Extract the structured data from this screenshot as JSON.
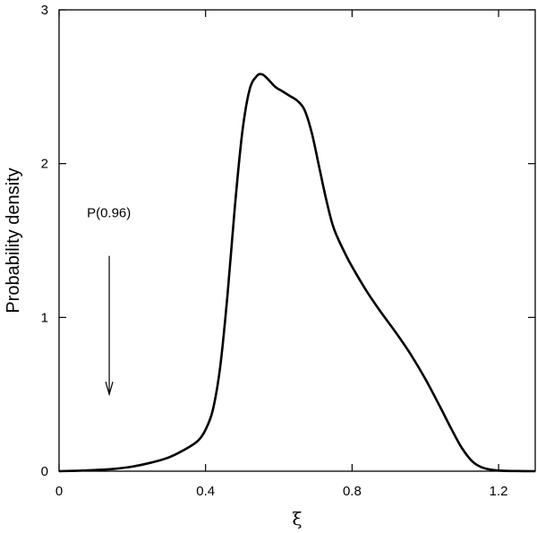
{
  "chart_data": {
    "type": "line",
    "title": "",
    "xlabel": "ξ",
    "ylabel": "Probability density",
    "xlim": [
      0,
      1.3
    ],
    "ylim": [
      0,
      3
    ],
    "xticks": [
      0,
      0.4,
      0.8,
      1.2
    ],
    "xtick_labels": [
      "0",
      "0.4",
      "0.8",
      "1.2"
    ],
    "yticks": [
      0,
      1,
      2,
      3
    ],
    "ytick_labels": [
      "0",
      "1",
      "2",
      "3"
    ],
    "grid": false,
    "series": [
      {
        "x": [
          0,
          0.05,
          0.1,
          0.15,
          0.2,
          0.25,
          0.3,
          0.35,
          0.38,
          0.4,
          0.42,
          0.44,
          0.46,
          0.48,
          0.5,
          0.52,
          0.54,
          0.555,
          0.57,
          0.59,
          0.61,
          0.63,
          0.65,
          0.67,
          0.69,
          0.71,
          0.73,
          0.75,
          0.78,
          0.8,
          0.84,
          0.88,
          0.92,
          0.96,
          1.0,
          1.04,
          1.07,
          1.1,
          1.13,
          1.16,
          1.2,
          1.25,
          1.3
        ],
        "y": [
          0,
          0.003,
          0.008,
          0.015,
          0.03,
          0.055,
          0.09,
          0.15,
          0.2,
          0.27,
          0.4,
          0.68,
          1.15,
          1.72,
          2.2,
          2.48,
          2.57,
          2.58,
          2.55,
          2.5,
          2.47,
          2.44,
          2.41,
          2.35,
          2.2,
          1.98,
          1.76,
          1.58,
          1.42,
          1.33,
          1.17,
          1.03,
          0.9,
          0.76,
          0.6,
          0.42,
          0.28,
          0.15,
          0.06,
          0.02,
          0.004,
          0.001,
          0
        ]
      }
    ],
    "annotations": [
      {
        "text": "P(0.96)",
        "arrow_x": 0.137,
        "arrow_from_y": 1.4,
        "arrow_to_y": 0.5
      }
    ]
  }
}
